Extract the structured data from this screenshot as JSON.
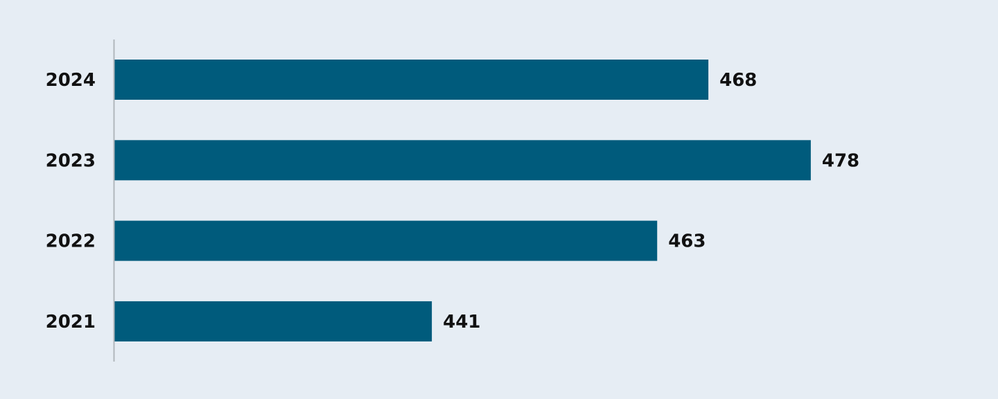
{
  "colors": {
    "background": "#e6edf4",
    "bar": "#005b7c",
    "axis": "#b0b6bb",
    "text": "#111111"
  },
  "chart_data": {
    "type": "bar",
    "orientation": "horizontal",
    "title": "",
    "xlabel": "",
    "ylabel": "",
    "categories": [
      "2024",
      "2023",
      "2022",
      "2021"
    ],
    "values": [
      468,
      478,
      463,
      441
    ],
    "value_labels": [
      "468",
      "478",
      "463",
      "441"
    ],
    "xlim": [
      410,
      482
    ],
    "grid": false,
    "legend": "none"
  }
}
